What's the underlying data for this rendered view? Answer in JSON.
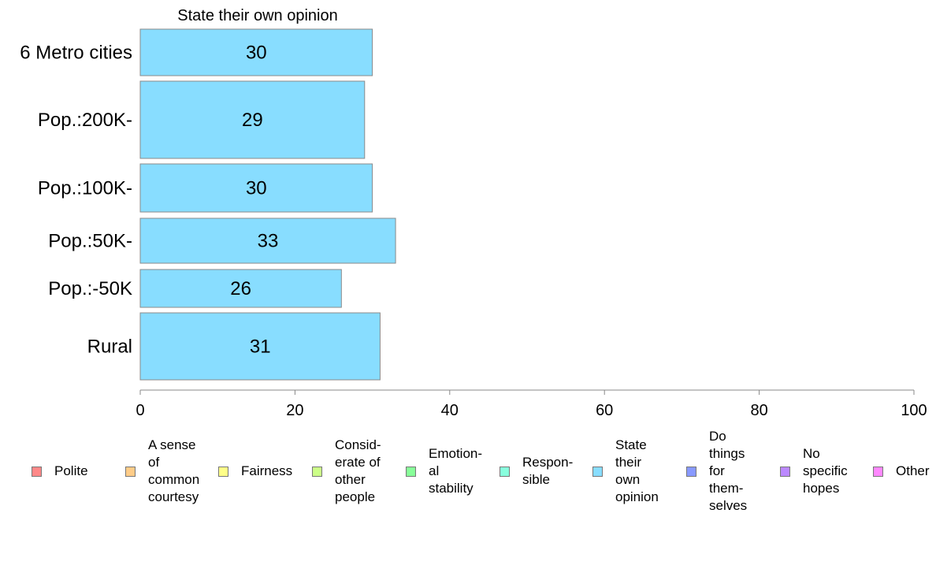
{
  "chart_data": {
    "type": "bar",
    "orientation": "horizontal",
    "title": "State their own opinion",
    "categories": [
      "6 Metro cities",
      "Pop.:200K-",
      "Pop.:100K-",
      "Pop.:50K-",
      "Pop.:-50K",
      "Rural"
    ],
    "values": [
      30,
      29,
      30,
      33,
      26,
      31
    ],
    "series_color": "#88ddff",
    "xlim": [
      0,
      100
    ],
    "xticks": [
      "0",
      "20",
      "40",
      "60",
      "80",
      "100"
    ],
    "grid": false,
    "legend_position": "bottom",
    "legend": [
      {
        "label": "Polite",
        "color": "#ff8888"
      },
      {
        "label": "A sense\nof\ncommon\ncourtesy",
        "color": "#ffcc88"
      },
      {
        "label": "Fairness",
        "color": "#ffff88"
      },
      {
        "label": "Consid-\nerate of\nother\npeople",
        "color": "#ccff88"
      },
      {
        "label": "Emotion-\nal\nstability",
        "color": "#88ff99"
      },
      {
        "label": "Respon-\nsible",
        "color": "#88ffdd"
      },
      {
        "label": "State\ntheir\nown\nopinion",
        "color": "#88ddff"
      },
      {
        "label": "Do\nthings\nfor\nthem-\nselves",
        "color": "#8899ff"
      },
      {
        "label": "No\nspecific\nhopes",
        "color": "#bb88ff"
      },
      {
        "label": "Other",
        "color": "#ff88ff"
      }
    ]
  }
}
